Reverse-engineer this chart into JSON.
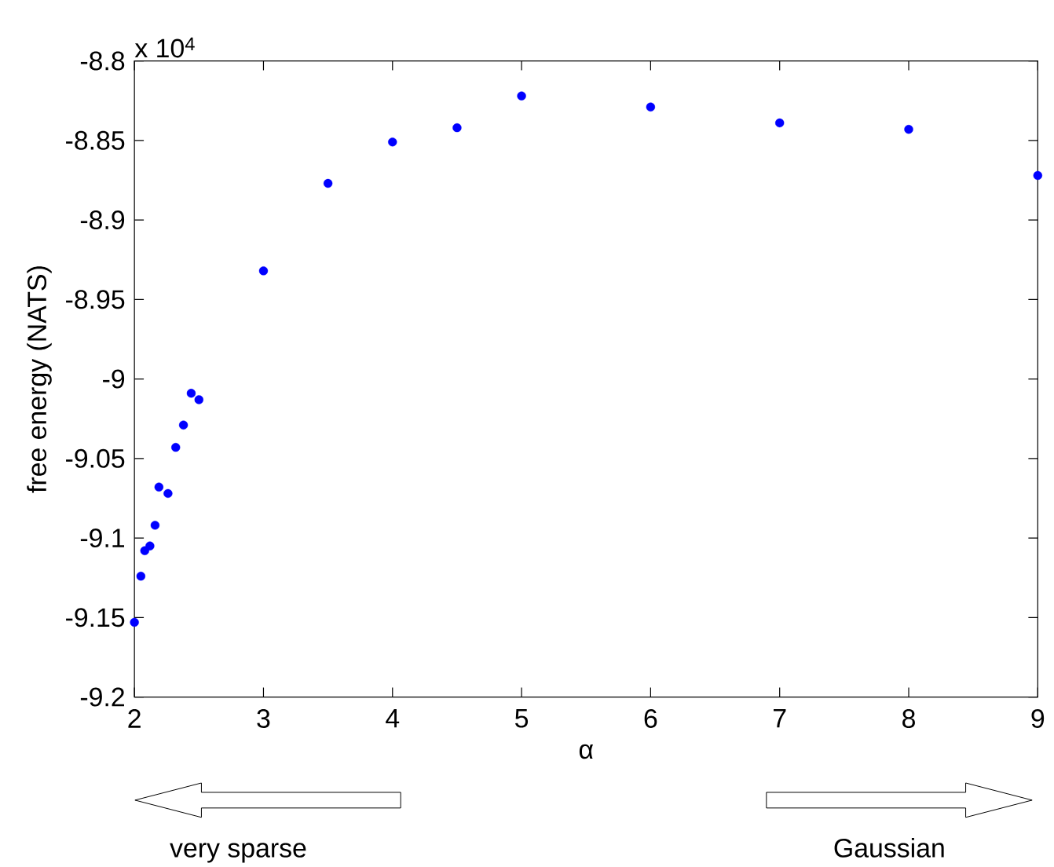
{
  "chart_data": {
    "type": "scatter",
    "xlabel": "α",
    "ylabel": "free energy (NATS)",
    "x": [
      2.0,
      2.05,
      2.08,
      2.12,
      2.16,
      2.19,
      2.26,
      2.32,
      2.38,
      2.44,
      2.5,
      3,
      3.5,
      4,
      4.5,
      5,
      6,
      7,
      8,
      9
    ],
    "series": [
      {
        "color": "#0000ff",
        "values": [
          -9.153,
          -9.124,
          -9.108,
          -9.105,
          -9.092,
          -9.068,
          -9.072,
          -9.043,
          -9.029,
          -9.009,
          -9.013,
          -8.932,
          -8.877,
          -8.851,
          -8.842,
          -8.822,
          -8.829,
          -8.839,
          -8.843,
          -8.872
        ]
      }
    ],
    "xlim": [
      2,
      9
    ],
    "ylim": [
      -9.2,
      -8.8
    ],
    "xticks": [
      2,
      3,
      4,
      5,
      6,
      7,
      8,
      9
    ],
    "yticks": [
      -9.2,
      -9.15,
      -9.1,
      -9.05,
      -9,
      -8.95,
      -8.9,
      -8.85,
      -8.8
    ],
    "annotations": [
      "x 10$^{4}$",
      "very sparse",
      "Gaussian"
    ]
  }
}
